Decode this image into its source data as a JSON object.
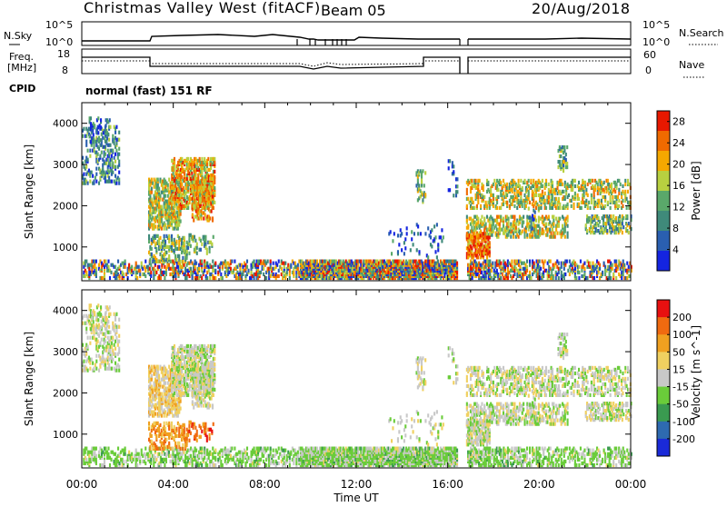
{
  "header": {
    "radar": "Christmas Valley West (fitACF)",
    "beam": "Beam 05",
    "date": "20/Aug/2018"
  },
  "top_panels": {
    "nsky_label": "N.Sky",
    "nsearch_label": "N.Search",
    "freq_label_line1": "Freq.",
    "freq_label_line2": "[MHz]",
    "nave_label": "Nave",
    "cpid_label": "CPID",
    "cpid_text": "normal (fast) 151 RF",
    "noise_ticks": [
      "10^5",
      "10^0"
    ],
    "freq_ticks": [
      "18",
      "8"
    ],
    "nave_ticks": [
      "60",
      "0"
    ]
  },
  "chart_data": [
    {
      "type": "heatmap",
      "title": "",
      "xlabel": "",
      "ylabel": "Slant Range [km]",
      "x_ticks": [
        "00:00",
        "04:00",
        "08:00",
        "12:00",
        "16:00",
        "20:00",
        "00:00"
      ],
      "y_ticks": [
        1000,
        2000,
        3000,
        4000
      ],
      "xlim_hours": [
        0,
        24
      ],
      "ylim_km": [
        180,
        4500
      ],
      "colorbar": {
        "label": "Power [dB]",
        "ticks": [
          4,
          8,
          12,
          16,
          20,
          24,
          28
        ],
        "range": [
          0,
          30
        ],
        "colors": [
          "#1424e0",
          "#2a5fb0",
          "#3f8a7a",
          "#5aa86a",
          "#b8d040",
          "#f5a800",
          "#f06a00",
          "#e81800"
        ]
      }
    },
    {
      "type": "heatmap",
      "title": "",
      "xlabel": "Time UT",
      "ylabel": "Slant Range [km]",
      "x_ticks": [
        "00:00",
        "04:00",
        "08:00",
        "12:00",
        "16:00",
        "20:00",
        "00:00"
      ],
      "y_ticks": [
        1000,
        2000,
        3000,
        4000
      ],
      "xlim_hours": [
        0,
        24
      ],
      "ylim_km": [
        180,
        4500
      ],
      "colorbar": {
        "label": "Velocity [m s^-1]",
        "ticks": [
          200,
          100,
          50,
          15,
          -15,
          -50,
          -100,
          -200
        ],
        "colors": [
          "#1a2ad8",
          "#2e6ab0",
          "#3a9a50",
          "#6acc3a",
          "#c8c8c8",
          "#f0d060",
          "#f0a020",
          "#f06a10",
          "#e81010"
        ]
      }
    }
  ]
}
